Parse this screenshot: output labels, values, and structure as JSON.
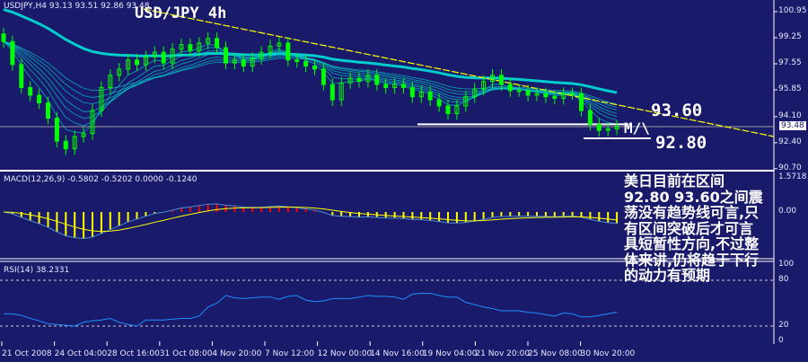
{
  "header": {
    "symbol_info": "USDJPY,H4  93.13 93.51 92.86 93.48",
    "title": "USD/JPY 4h"
  },
  "annotations": {
    "resistance": "93.60",
    "support": "92.80",
    "pattern": "M/\\",
    "note_lines": [
      "美日目前在区间",
      "92.80 93.60之间震",
      "荡没有趋势线可言,只",
      "有区间突破后才可言",
      "具短暂性方向,不过整",
      "体来讲,仍将趋于下行",
      "的动力有预期"
    ]
  },
  "colors": {
    "background": "#1a1a6b",
    "candle": "#00ff00",
    "ma": "#00cccc",
    "trendline": "#ffff00",
    "macd_pos": "#ff0000",
    "macd_neg": "#ffff00",
    "rsi": "#1e90ff"
  },
  "chart_data": [
    {
      "type": "candlestick",
      "title": "USD/JPY 4h",
      "price_axis": [
        "100.95",
        "99.25",
        "97.55",
        "95.85",
        "94.10",
        "92.40",
        "90.70"
      ],
      "ylim": [
        90.7,
        100.95
      ],
      "current_price": "93.48",
      "x_ticks": [
        "21 Oct 2008",
        "24 Oct 04:00",
        "28 Oct 16:00",
        "31 Oct 08:00",
        "4 Nov 20:00",
        "7 Nov 12:00",
        "12 Nov 00:00",
        "14 Nov 16:00",
        "19 Nov 04:00",
        "21 Nov 20:00",
        "25 Nov 08:00",
        "30 Nov 20:00"
      ],
      "close": [
        99.0,
        97.5,
        96.0,
        95.5,
        95.0,
        94.0,
        92.5,
        92.0,
        92.8,
        93.0,
        94.5,
        96.0,
        96.8,
        97.2,
        97.8,
        97.5,
        98.0,
        98.3,
        97.6,
        98.5,
        98.8,
        98.4,
        98.9,
        99.2,
        98.6,
        97.6,
        97.8,
        97.4,
        97.9,
        98.3,
        98.7,
        98.9,
        97.8,
        97.7,
        97.4,
        97.2,
        96.2,
        95.2,
        96.3,
        96.6,
        96.4,
        96.8,
        96.2,
        96.0,
        96.2,
        96.0,
        95.4,
        95.7,
        95.2,
        94.8,
        94.3,
        94.8,
        95.4,
        95.9,
        96.4,
        96.8,
        96.2,
        95.8,
        95.8,
        95.5,
        95.6,
        95.4,
        95.3,
        95.6,
        95.6,
        94.5,
        93.6,
        93.2,
        93.3,
        93.48
      ],
      "horizontal_levels": [
        93.6,
        92.8
      ]
    },
    {
      "type": "bar",
      "title": "MACD(12,26,9) -0.5802 -0.5202 0.0000 -0.1240",
      "axis": [
        "1.5718",
        "0.00"
      ]
    },
    {
      "type": "line",
      "title": "RSI(14) 38.2331",
      "axis": [
        "100",
        "80",
        "20",
        "0"
      ],
      "levels": [
        80,
        20
      ],
      "ylim": [
        0,
        100
      ],
      "values": [
        36,
        36,
        34,
        30,
        27,
        23,
        22,
        21,
        20,
        25,
        27,
        28,
        30,
        25,
        22,
        20,
        28,
        28,
        28,
        29,
        30,
        30,
        33,
        45,
        50,
        60,
        57,
        56,
        57,
        58,
        58,
        55,
        59,
        60,
        54,
        52,
        53,
        56,
        56,
        56,
        58,
        60,
        59,
        59,
        58,
        55,
        62,
        63,
        63,
        60,
        58,
        58,
        51,
        48,
        45,
        43,
        40,
        40,
        40,
        38,
        37,
        35,
        33,
        37,
        36,
        32,
        32,
        34,
        36,
        38.23
      ]
    }
  ]
}
